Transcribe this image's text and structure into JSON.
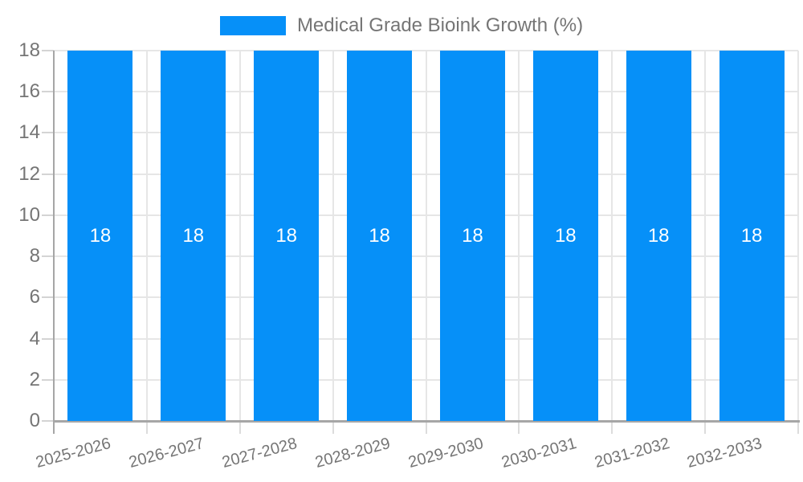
{
  "chart_data": {
    "type": "bar",
    "title": "Medical Grade Bioink Growth (%)",
    "categories": [
      "2025-2026",
      "2026-2027",
      "2027-2028",
      "2028-2029",
      "2029-2030",
      "2030-2031",
      "2031-2032",
      "2032-2033"
    ],
    "series": [
      {
        "name": "Medical Grade Bioink Growth (%)",
        "values": [
          18,
          18,
          18,
          18,
          18,
          18,
          18,
          18
        ]
      }
    ],
    "bar_labels": [
      "18",
      "18",
      "18",
      "18",
      "18",
      "18",
      "18",
      "18"
    ],
    "xlabel": "",
    "ylabel": "",
    "ylim": [
      0,
      18
    ],
    "ytick_step": 2,
    "ytick_labels": [
      "0",
      "2",
      "4",
      "6",
      "8",
      "10",
      "12",
      "14",
      "16",
      "18"
    ],
    "grid": "horizontal and vertical, light gray",
    "legend_position": "top-center",
    "colors": {
      "bar": "#0690f8",
      "bar_label": "#ffffff",
      "axis_text": "#757575",
      "grid_line": "#e6e6e6",
      "axis_line": "#a6a6a6",
      "background": "#ffffff"
    }
  }
}
